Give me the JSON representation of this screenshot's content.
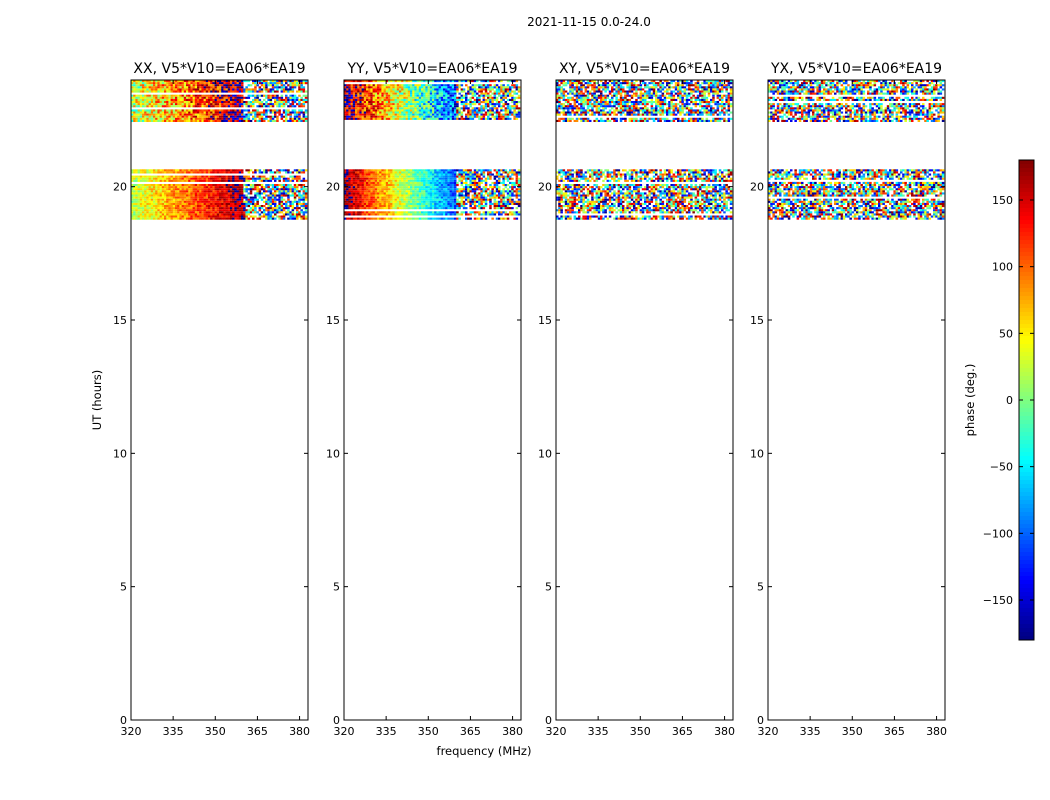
{
  "suptitle": "2021-11-15 0.0-24.0",
  "chart_data": {
    "type": "heatmap",
    "xlabel": "frequency (MHz)",
    "ylabel": "UT (hours)",
    "xlim": [
      320,
      383
    ],
    "ylim": [
      0,
      24
    ],
    "xticks": [
      320,
      335,
      350,
      365,
      380
    ],
    "yticks": [
      0,
      5,
      10,
      15,
      20
    ],
    "colorbar": {
      "label": "phase (deg.)",
      "range": [
        -180,
        180
      ],
      "ticks": [
        150,
        100,
        50,
        0,
        -50,
        -100,
        -150
      ],
      "tick_labels": [
        "150",
        "100",
        "50",
        "0",
        "−50",
        "−100",
        "−150"
      ],
      "colormap": "jet"
    },
    "time_blocks": [
      {
        "start": 22.4,
        "end": 24.0
      },
      {
        "start": 18.75,
        "end": 20.65
      }
    ],
    "panels": [
      {
        "title": "XX, V5*V10=EA06*EA19",
        "pattern": "coherent",
        "phase_start": 20,
        "phase_end": 170,
        "noise_from": 360
      },
      {
        "title": "YY, V5*V10=EA06*EA19",
        "pattern": "coherent",
        "phase_start": 175,
        "phase_end": -110,
        "noise_from": 360
      },
      {
        "title": "XY, V5*V10=EA06*EA19",
        "pattern": "noise"
      },
      {
        "title": "YX, V5*V10=EA06*EA19",
        "pattern": "noise"
      }
    ]
  }
}
